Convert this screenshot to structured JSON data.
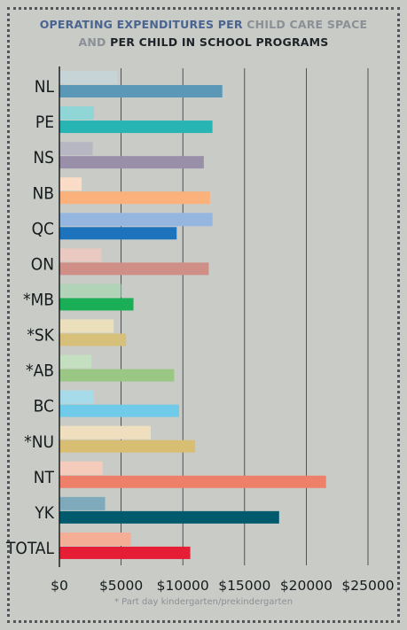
{
  "title": {
    "part1": "OPERATING EXPENDITURES PER",
    "part2": "CHILD CARE SPACE",
    "part3": "AND",
    "part4": "PER CHILD IN SCHOOL PROGRAMS"
  },
  "footnote": "* Part day kindergarten/prekindergarten",
  "chart_data": {
    "type": "bar",
    "orientation": "horizontal",
    "title": "OPERATING EXPENDITURES PER CHILD CARE SPACE AND PER CHILD IN SCHOOL PROGRAMS",
    "xlim": [
      0,
      25000
    ],
    "x_ticks": [
      0,
      5000,
      10000,
      15000,
      20000,
      25000
    ],
    "x_tick_labels": [
      "$0",
      "$5000",
      "$10000",
      "$15000",
      "$20000",
      "$25000"
    ],
    "grid": true,
    "categories": [
      "NL",
      "PE",
      "NS",
      "NB",
      "QC",
      "ON",
      "*MB",
      "*SK",
      "*AB",
      "BC",
      "*NU",
      "NT",
      "YK",
      "TOTAL"
    ],
    "series": [
      {
        "values": [
          4700,
          2800,
          2700,
          1800,
          12400,
          3400,
          5000,
          4400,
          2600,
          2800,
          7400,
          3500,
          3700,
          5800
        ]
      },
      {
        "values": [
          13200,
          12400,
          11700,
          12200,
          9500,
          12100,
          6000,
          5400,
          9300,
          9700,
          11000,
          21600,
          17800,
          10600
        ]
      }
    ],
    "colors": {
      "child_care": [
        "#c6d3d7",
        "#90d6d6",
        "#b6b7c3",
        "#fbdcc7",
        "#94b6df",
        "#e9c9c1",
        "#b1d3b7",
        "#ecdfbc",
        "#c5e0c0",
        "#a7dbea",
        "#efdfbe",
        "#f5ccbc",
        "#7eaabb",
        "#f5ae96"
      ],
      "school": [
        "#5b98b8",
        "#27b4b2",
        "#9a8fa8",
        "#fbb17b",
        "#1d74bc",
        "#cf8f86",
        "#1aae57",
        "#d6c07a",
        "#9bc785",
        "#6fcbe9",
        "#d8be73",
        "#ee7f69",
        "#005a6e",
        "#e51e36"
      ]
    }
  }
}
